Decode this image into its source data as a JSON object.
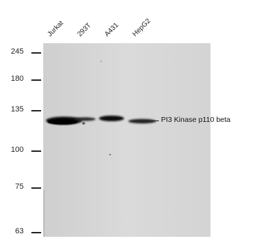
{
  "lanes": [
    "Jurkat",
    "293T",
    "A431",
    "HepG2"
  ],
  "mw_markers": [
    "245",
    "180",
    "135",
    "100",
    "75",
    "63"
  ],
  "target": "PI3 Kinase p110 beta",
  "colors": {
    "membrane": "#d9d9d9",
    "band": "#111111"
  }
}
